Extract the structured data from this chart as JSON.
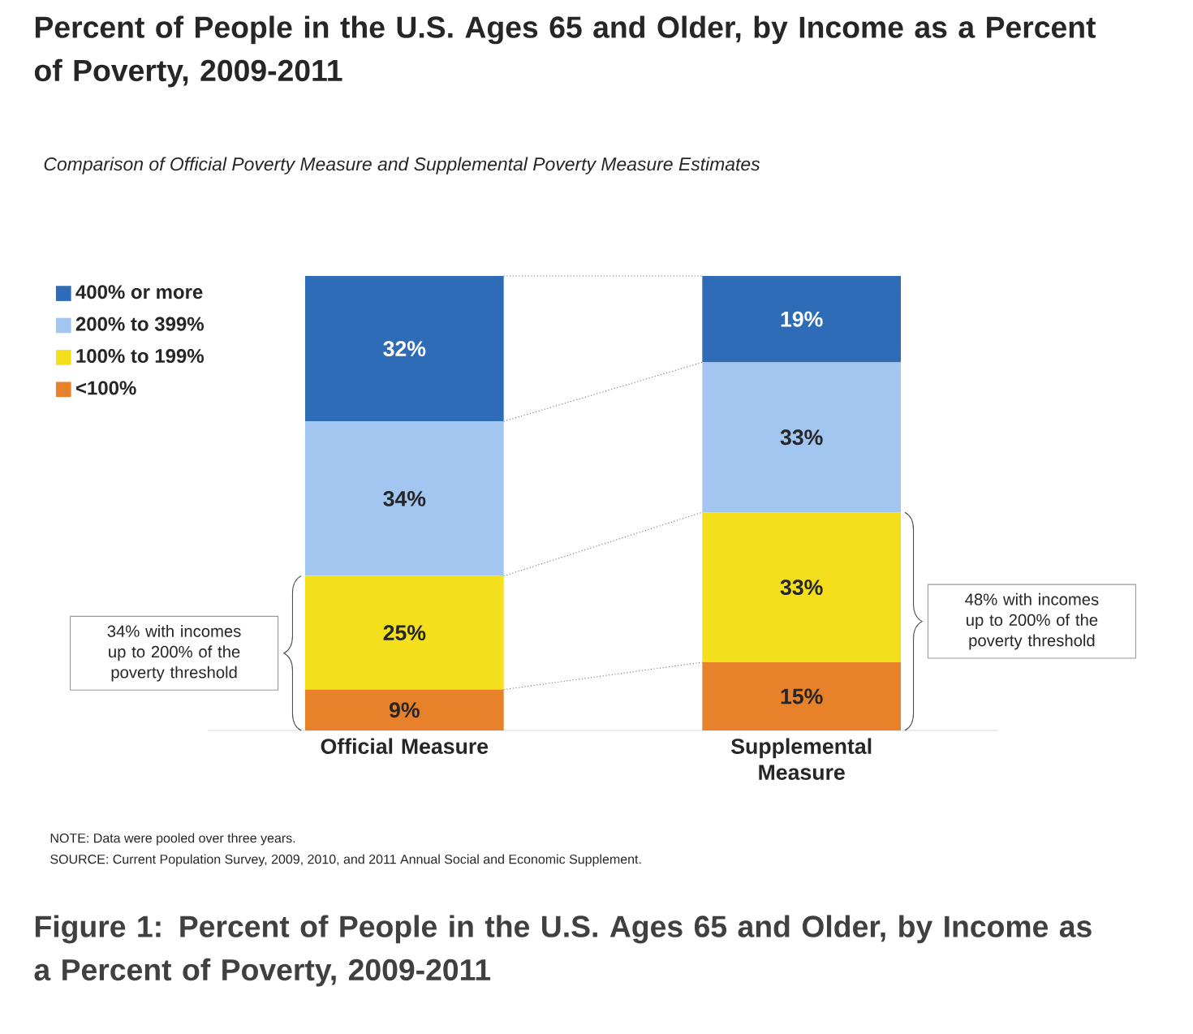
{
  "chart_data": {
    "type": "bar",
    "stacked": true,
    "title": "Percent of People in the U.S. Ages 65 and Older, by Income as a Percent of Poverty, 2009-2011",
    "subtitle": "Comparison of Official Poverty Measure and Supplemental Poverty Measure Estimates",
    "categories": [
      "Official Measure",
      "Supplemental Measure"
    ],
    "ylim": [
      0,
      100
    ],
    "series": [
      {
        "name": "<100%",
        "color": "#e8822a",
        "values": [
          9,
          15
        ],
        "value_labels": [
          "9%",
          "15%"
        ]
      },
      {
        "name": "100% to 199%",
        "color": "#f3df1c",
        "values": [
          25,
          33
        ],
        "value_labels": [
          "25%",
          "33%"
        ]
      },
      {
        "name": "200% to 399%",
        "color": "#a3c6f0",
        "values": [
          34,
          33
        ],
        "value_labels": [
          "34%",
          "33%"
        ]
      },
      {
        "name": "400% or more",
        "color": "#2f6cb8",
        "values": [
          32,
          19
        ],
        "value_labels": [
          "32%",
          "19%"
        ]
      }
    ],
    "legend": "left",
    "annotations": [
      "34% with incomes up to 200% of the poverty threshold",
      "48% with incomes up to 200% of the poverty threshold",
      "NOTE: Data were pooled over three years.",
      "SOURCE: Current Population Survey, 2009, 2010, and 2011 Annual Social and Economic Supplement.",
      "Figure 1: Percent of People in the U.S. Ages 65 and Older, by Income as a Percent of Poverty, 2009-2011"
    ]
  }
}
